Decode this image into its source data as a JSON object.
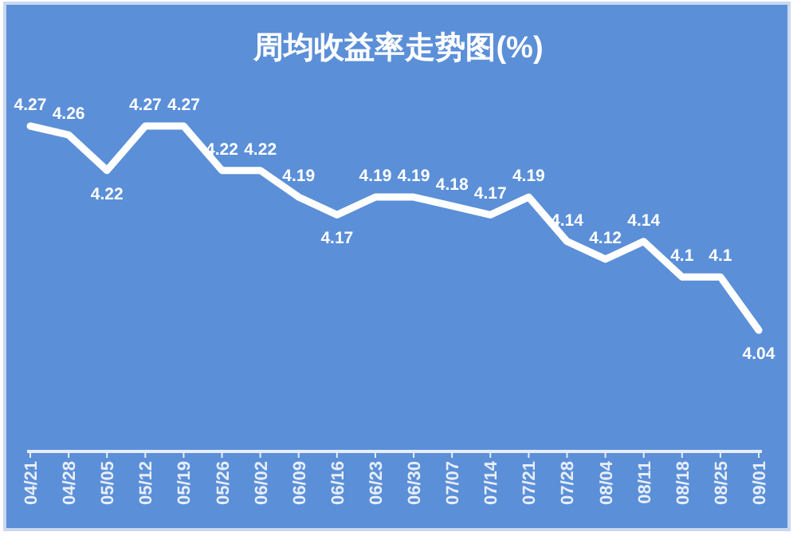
{
  "chart_data": {
    "type": "line",
    "title": "周均收益率走势图(%)",
    "categories": [
      "04/21",
      "04/28",
      "05/05",
      "05/12",
      "05/19",
      "05/26",
      "06/02",
      "06/09",
      "06/16",
      "06/23",
      "06/30",
      "07/07",
      "07/14",
      "07/21",
      "07/28",
      "08/04",
      "08/11",
      "08/18",
      "08/25",
      "09/01"
    ],
    "series": [
      {
        "color": "#ffffff",
        "values": [
          4.27,
          4.26,
          4.22,
          4.27,
          4.27,
          4.22,
          4.22,
          4.19,
          4.17,
          4.19,
          4.19,
          4.18,
          4.17,
          4.19,
          4.14,
          4.12,
          4.14,
          4.1,
          4.1,
          4.04
        ]
      }
    ],
    "data_labels": true,
    "grid": false,
    "marker": "none",
    "line_style": "solid"
  }
}
